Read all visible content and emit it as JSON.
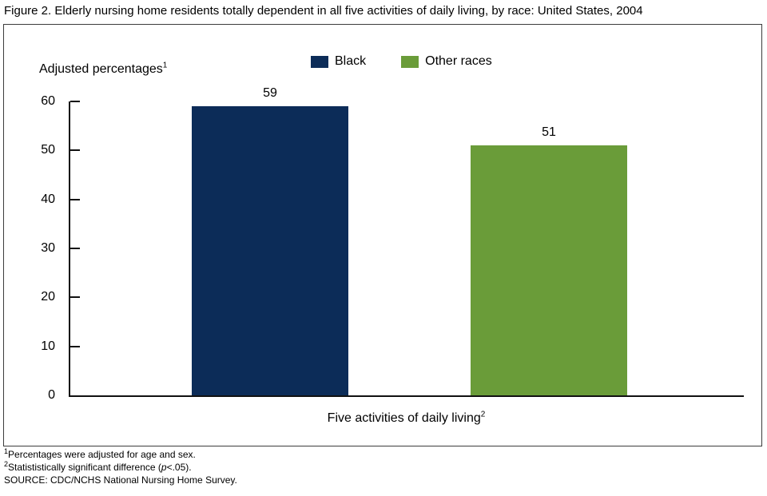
{
  "figure": {
    "title": "Figure 2. Elderly nursing home residents totally dependent in all five activities of daily living, by race: United States, 2004"
  },
  "chart_data": {
    "type": "bar",
    "categories": [
      "Five activities of daily living"
    ],
    "series": [
      {
        "name": "Black",
        "color": "#0c2c58",
        "values": [
          59
        ]
      },
      {
        "name": "Other races",
        "color": "#6a9c39",
        "values": [
          51
        ]
      }
    ],
    "title": "Figure 2. Elderly nursing home residents totally dependent in all five activities of daily living, by race: United States, 2004",
    "ylabel": "Adjusted percentages",
    "ylabel_sup": "1",
    "xlabel": "Five activities of daily living",
    "xlabel_sup": "2",
    "ylim": [
      0,
      60
    ],
    "yticks": [
      0,
      10,
      20,
      30,
      40,
      50,
      60
    ],
    "grid": false,
    "legend_position": "top-center",
    "value_labels": [
      59,
      51
    ]
  },
  "footnotes": {
    "line1": {
      "sup": "1",
      "text": "Percentages were adjusted for age and sex."
    },
    "line2": {
      "sup": "2",
      "before": "Statististically significant difference (",
      "p": "p",
      "after": "<.05)."
    },
    "line3": {
      "text": "SOURCE: CDC/NCHS National Nursing Home Survey."
    }
  }
}
